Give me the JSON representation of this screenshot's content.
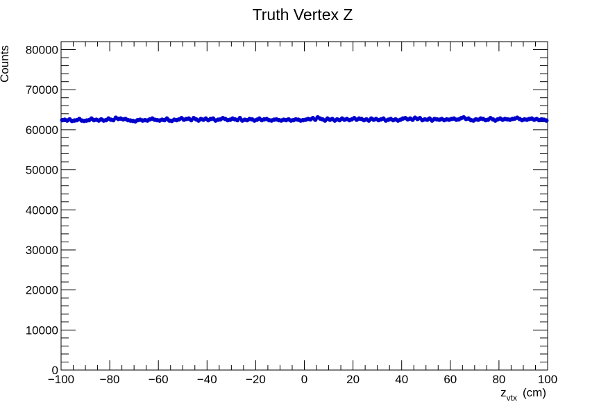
{
  "chart_data": {
    "type": "scatter",
    "title": "Truth Vertex Z",
    "xlabel": {
      "main": "z",
      "sub": "vtx",
      "unit": "(cm)"
    },
    "ylabel": "Counts",
    "xlim": [
      -100,
      100
    ],
    "ylim": [
      0,
      82000
    ],
    "x_ticks": [
      -100,
      -80,
      -60,
      -40,
      -20,
      0,
      20,
      40,
      60,
      80,
      100
    ],
    "x_tick_labels": [
      "−100",
      "−80",
      "−60",
      "−40",
      "−20",
      "0",
      "20",
      "40",
      "60",
      "80",
      "100"
    ],
    "y_ticks": [
      0,
      10000,
      20000,
      30000,
      40000,
      50000,
      60000,
      70000,
      80000
    ],
    "y_tick_labels": [
      "0",
      "10000",
      "20000",
      "30000",
      "40000",
      "50000",
      "60000",
      "70000",
      "80000"
    ],
    "marker_color": "#0000cc",
    "grid": false,
    "series": [
      {
        "bins": 200,
        "x_start": -99.5,
        "x_step": 1,
        "values": [
          62400,
          62500,
          62300,
          62600,
          62200,
          62300,
          62400,
          62700,
          62300,
          62200,
          62300,
          62400,
          62800,
          62400,
          62500,
          62300,
          62600,
          62300,
          62400,
          62800,
          62500,
          62400,
          63000,
          62700,
          62800,
          62600,
          62700,
          62400,
          62300,
          62200,
          62100,
          62400,
          62500,
          62300,
          62400,
          62300,
          62600,
          62800,
          62500,
          62400,
          62300,
          62500,
          62400,
          62800,
          62300,
          62200,
          62500,
          62400,
          62600,
          62900,
          62500,
          62700,
          62800,
          62400,
          62900,
          62600,
          62300,
          62700,
          62500,
          62800,
          62400,
          62700,
          62800,
          62300,
          62500,
          62600,
          62900,
          62700,
          62400,
          62500,
          62800,
          62600,
          62400,
          62900,
          62300,
          62500,
          62400,
          62700,
          62600,
          62300,
          62500,
          62800,
          62400,
          62600,
          62700,
          62400,
          62300,
          62500,
          62600,
          62400,
          62300,
          62500,
          62400,
          62600,
          62300,
          62400,
          62600,
          62500,
          62300,
          62400,
          62500,
          62700,
          62600,
          62900,
          62500,
          63100,
          62800,
          62600,
          62300,
          62800,
          62500,
          62700,
          62300,
          62600,
          62400,
          62800,
          62500,
          62700,
          62400,
          62600,
          62900,
          62500,
          62800,
          62700,
          62400,
          62600,
          62300,
          62800,
          62500,
          62700,
          62400,
          62600,
          62800,
          62300,
          62500,
          62700,
          62400,
          62600,
          62300,
          62500,
          62800,
          62900,
          62600,
          62800,
          62500,
          63000,
          62700,
          62900,
          62400,
          62600,
          62500,
          62800,
          62300,
          62700,
          62600,
          62500,
          62700,
          62400,
          62600,
          62500,
          62700,
          62800,
          62500,
          62600,
          62900,
          63100,
          62700,
          62800,
          62400,
          62300,
          62600,
          62500,
          62800,
          62700,
          62400,
          62500,
          62900,
          62600,
          62300,
          62600,
          62800,
          62500,
          62700,
          62600,
          62500,
          62700,
          62800,
          63000,
          62700,
          62400,
          62600,
          62500,
          62700,
          62800,
          62500,
          62700,
          62400,
          62600,
          62500,
          62300
        ]
      }
    ]
  }
}
